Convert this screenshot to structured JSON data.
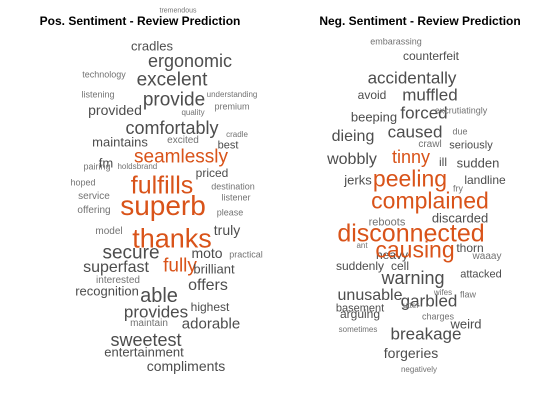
{
  "colors": {
    "highlight": "#d95319",
    "dark": "#4d4d4d",
    "mid": "#737373",
    "light": "#a6a6a6"
  },
  "pos": {
    "title": "Pos. Sentiment - Review Prediction",
    "words": [
      {
        "t": "tremendous",
        "tier": "s"
      },
      {
        "t": "cradles",
        "tier": "m"
      },
      {
        "t": "ergonomic",
        "tier": "L"
      },
      {
        "t": "technology",
        "tier": "s"
      },
      {
        "t": "excelent",
        "tier": "L"
      },
      {
        "t": "listening",
        "tier": "s"
      },
      {
        "t": "provide",
        "tier": "L"
      },
      {
        "t": "understanding",
        "tier": "s"
      },
      {
        "t": "provided",
        "tier": "m"
      },
      {
        "t": "quality",
        "tier": "s"
      },
      {
        "t": "premium",
        "tier": "s"
      },
      {
        "t": "comfortably",
        "tier": "L"
      },
      {
        "t": "maintains",
        "tier": "m"
      },
      {
        "t": "excited",
        "tier": "s"
      },
      {
        "t": "cradle",
        "tier": "s"
      },
      {
        "t": "best",
        "tier": "m"
      },
      {
        "t": "seamlessly",
        "tier": "H"
      },
      {
        "t": "fm",
        "tier": "m"
      },
      {
        "t": "pairing",
        "tier": "s"
      },
      {
        "t": "holds",
        "tier": "s"
      },
      {
        "t": "brand",
        "tier": "s"
      },
      {
        "t": "priced",
        "tier": "m"
      },
      {
        "t": "fulfills",
        "tier": "H"
      },
      {
        "t": "hoped",
        "tier": "s"
      },
      {
        "t": "destination",
        "tier": "s"
      },
      {
        "t": "service",
        "tier": "s"
      },
      {
        "t": "listener",
        "tier": "s"
      },
      {
        "t": "superb",
        "tier": "H"
      },
      {
        "t": "offering",
        "tier": "s"
      },
      {
        "t": "please",
        "tier": "s"
      },
      {
        "t": "truly",
        "tier": "m"
      },
      {
        "t": "model",
        "tier": "s"
      },
      {
        "t": "thanks",
        "tier": "H"
      },
      {
        "t": "secure",
        "tier": "L"
      },
      {
        "t": "moto",
        "tier": "m"
      },
      {
        "t": "practical",
        "tier": "s"
      },
      {
        "t": "fully",
        "tier": "H"
      },
      {
        "t": "superfast",
        "tier": "L"
      },
      {
        "t": "brilliant",
        "tier": "m"
      },
      {
        "t": "interested",
        "tier": "s"
      },
      {
        "t": "offers",
        "tier": "L"
      },
      {
        "t": "recognition",
        "tier": "m"
      },
      {
        "t": "able",
        "tier": "L"
      },
      {
        "t": "highest",
        "tier": "m"
      },
      {
        "t": "provides",
        "tier": "L"
      },
      {
        "t": "maintain",
        "tier": "s"
      },
      {
        "t": "adorable",
        "tier": "m"
      },
      {
        "t": "sweetest",
        "tier": "L"
      },
      {
        "t": "entertainment",
        "tier": "m"
      },
      {
        "t": "compliments",
        "tier": "m"
      }
    ]
  },
  "neg": {
    "title": "Neg. Sentiment - Review Prediction",
    "words": [
      {
        "t": "embarassing",
        "tier": "s"
      },
      {
        "t": "counterfeit",
        "tier": "m"
      },
      {
        "t": "accidentally",
        "tier": "L"
      },
      {
        "t": "avoid",
        "tier": "m"
      },
      {
        "t": "muffled",
        "tier": "L"
      },
      {
        "t": "beeping",
        "tier": "m"
      },
      {
        "t": "forced",
        "tier": "L"
      },
      {
        "t": "excrutiatingly",
        "tier": "s"
      },
      {
        "t": "dieing",
        "tier": "L"
      },
      {
        "t": "caused",
        "tier": "L"
      },
      {
        "t": "crawl",
        "tier": "s"
      },
      {
        "t": "due",
        "tier": "s"
      },
      {
        "t": "seriously",
        "tier": "m"
      },
      {
        "t": "tinny",
        "tier": "H"
      },
      {
        "t": "wobbly",
        "tier": "L"
      },
      {
        "t": "ill",
        "tier": "m"
      },
      {
        "t": "sudden",
        "tier": "m"
      },
      {
        "t": "jerks",
        "tier": "m"
      },
      {
        "t": "peeling",
        "tier": "H"
      },
      {
        "t": "landline",
        "tier": "m"
      },
      {
        "t": "fry",
        "tier": "s"
      },
      {
        "t": "complained",
        "tier": "H"
      },
      {
        "t": "reboots",
        "tier": "s"
      },
      {
        "t": "discarded",
        "tier": "m"
      },
      {
        "t": "disconnected",
        "tier": "H"
      },
      {
        "t": "thorn",
        "tier": "m"
      },
      {
        "t": "ant",
        "tier": "s"
      },
      {
        "t": "heavy",
        "tier": "m"
      },
      {
        "t": "causing",
        "tier": "H"
      },
      {
        "t": "waaay",
        "tier": "s"
      },
      {
        "t": "suddenly",
        "tier": "m"
      },
      {
        "t": "cell",
        "tier": "m"
      },
      {
        "t": "warning",
        "tier": "L"
      },
      {
        "t": "attacked",
        "tier": "m"
      },
      {
        "t": "unusable",
        "tier": "L"
      },
      {
        "t": "garbled",
        "tier": "L"
      },
      {
        "t": "basement",
        "tier": "m"
      },
      {
        "t": "utter",
        "tier": "s"
      },
      {
        "t": "wifes",
        "tier": "s"
      },
      {
        "t": "flaw",
        "tier": "s"
      },
      {
        "t": "arguing",
        "tier": "m"
      },
      {
        "t": "charges",
        "tier": "s"
      },
      {
        "t": "breakage",
        "tier": "L"
      },
      {
        "t": "weird",
        "tier": "m"
      },
      {
        "t": "sometimes",
        "tier": "s"
      },
      {
        "t": "forgeries",
        "tier": "m"
      },
      {
        "t": "negatively",
        "tier": "s"
      }
    ]
  }
}
